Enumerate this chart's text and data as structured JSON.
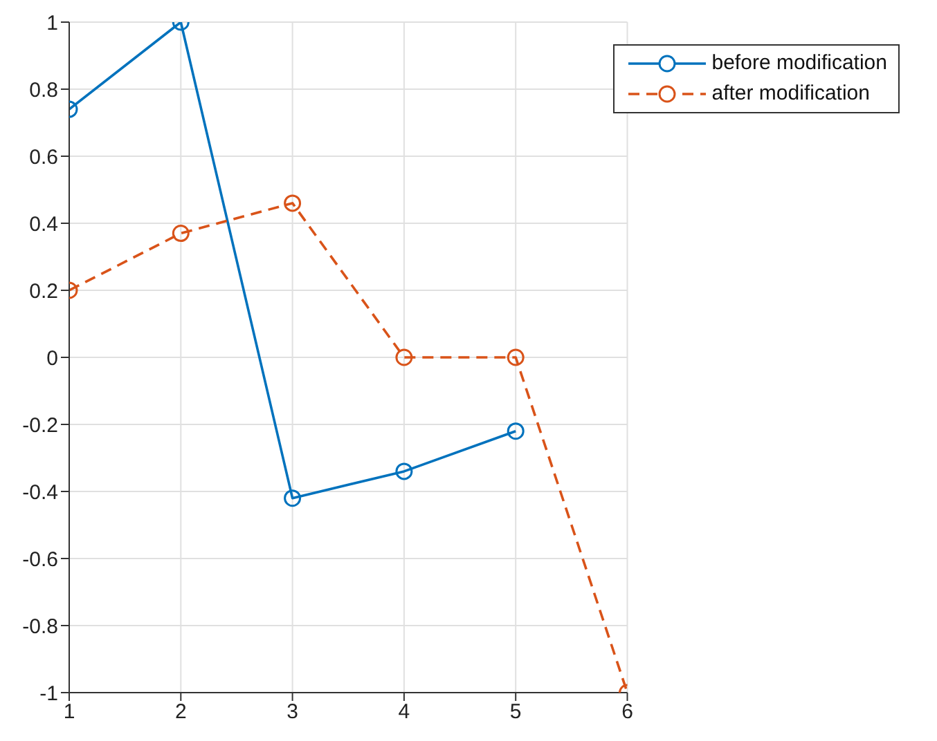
{
  "chart_data": {
    "type": "line",
    "x": [
      1,
      2,
      3,
      4,
      5,
      6
    ],
    "series": [
      {
        "name": "before modification",
        "color": "#0072bd",
        "values": [
          0.74,
          1,
          -0.42,
          -0.34,
          -0.22,
          null
        ],
        "line_style": "solid"
      },
      {
        "name": "after modification",
        "color": "#d95319",
        "values": [
          0.2,
          0.37,
          0.46,
          0,
          0,
          -1
        ],
        "line_style": "dashed"
      }
    ],
    "xlim": [
      1,
      6
    ],
    "xticks": [
      1,
      2,
      3,
      4,
      5,
      6
    ],
    "ylim": [
      -1,
      1
    ],
    "yticks": [
      -1,
      -0.8,
      -0.6,
      -0.4,
      -0.2,
      0,
      0.2,
      0.4,
      0.6,
      0.8,
      1
    ],
    "grid": true,
    "legend": "top right",
    "marker": "circle"
  }
}
